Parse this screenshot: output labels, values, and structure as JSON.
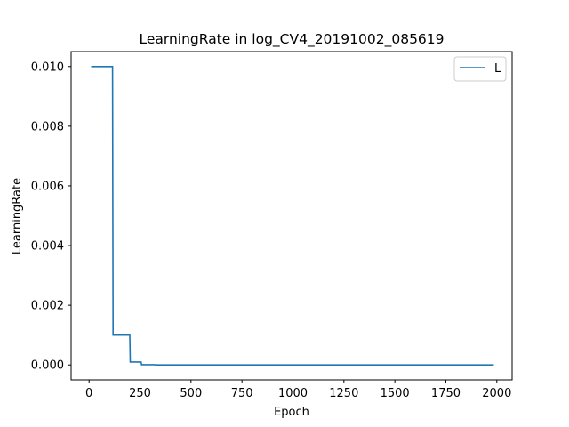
{
  "chart_data": {
    "type": "line",
    "title": "LearningRate in log_CV4_20191002_085619",
    "xlabel": "Epoch",
    "ylabel": "LearningRate",
    "xlim": [
      -88,
      2075
    ],
    "ylim": [
      -0.0005,
      0.0105
    ],
    "xticks": [
      0,
      250,
      500,
      750,
      1000,
      1250,
      1500,
      1750,
      2000
    ],
    "xtick_labels": [
      "0",
      "250",
      "500",
      "750",
      "1000",
      "1250",
      "1500",
      "1750",
      "2000"
    ],
    "yticks": [
      0.0,
      0.002,
      0.004,
      0.006,
      0.008,
      0.01
    ],
    "ytick_labels": [
      "0.000",
      "0.002",
      "0.004",
      "0.006",
      "0.008",
      "0.010"
    ],
    "legend_position": "top-right",
    "grid": false,
    "series": [
      {
        "name": "L",
        "color": "#1f77b4",
        "x": [
          10,
          115,
          118,
          200,
          202,
          255,
          258,
          320,
          325,
          1985
        ],
        "y": [
          0.01,
          0.01,
          0.001,
          0.001,
          0.0001,
          0.0001,
          1e-05,
          1e-05,
          1e-06,
          1e-06
        ]
      }
    ]
  }
}
